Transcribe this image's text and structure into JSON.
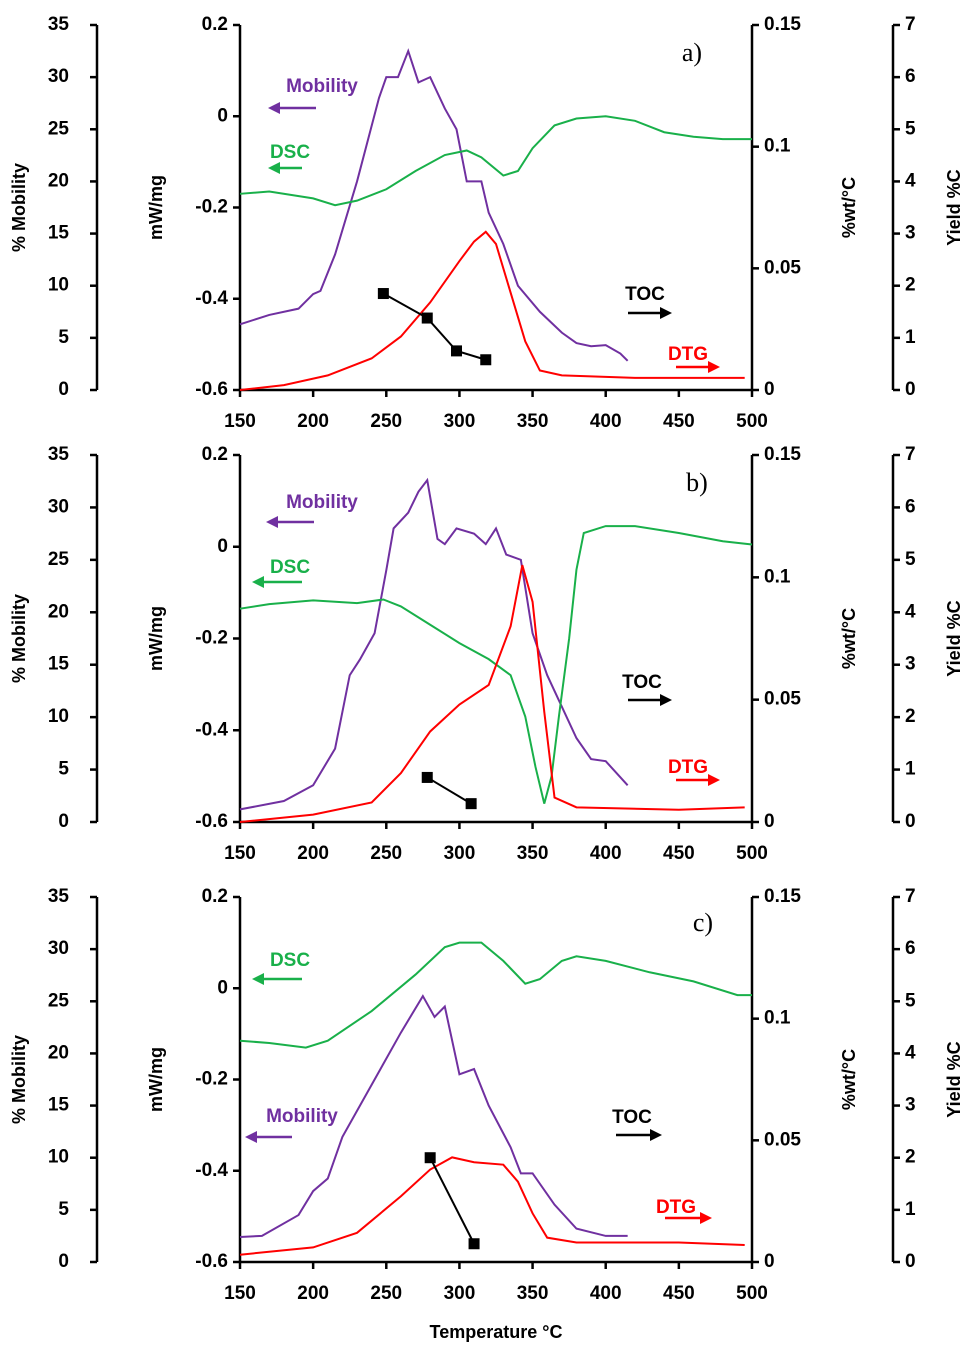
{
  "chart_data": [
    {
      "type": "line",
      "panel_label": "a)",
      "xlim": [
        150,
        500
      ],
      "xticks": [
        150,
        200,
        250,
        300,
        350,
        400,
        450,
        500
      ],
      "ylabel": "% Mobility",
      "ylim": [
        0,
        35
      ],
      "yticks": [
        0,
        5,
        10,
        15,
        20,
        25,
        30,
        35
      ],
      "y2label": "mW/mg",
      "y2lim": [
        -0.6,
        0.2
      ],
      "y2ticks": [
        -0.6,
        -0.4,
        -0.2,
        0,
        0.2
      ],
      "y3label": "%wt/°C",
      "y3lim": [
        0,
        0.15
      ],
      "y3ticks": [
        0,
        0.05,
        0.1,
        0.15
      ],
      "y4label": "Yield %C",
      "y4lim": [
        0,
        7
      ],
      "y4ticks": [
        0,
        1,
        2,
        3,
        4,
        5,
        6,
        7
      ],
      "series": [
        {
          "name": "Mobility",
          "color": "#7030a0",
          "axis": "y",
          "markers": false,
          "x": [
            150,
            170,
            190,
            200,
            205,
            215,
            230,
            245,
            250,
            258,
            265,
            272,
            280,
            290,
            298,
            305,
            315,
            320,
            330,
            340,
            355,
            370,
            380,
            390,
            400,
            410,
            415
          ],
          "values": [
            6.3,
            7.2,
            7.8,
            9.2,
            9.5,
            13,
            20,
            28,
            30,
            30,
            32.5,
            29.5,
            30,
            27,
            25,
            20,
            20,
            17,
            14,
            10,
            7.5,
            5.5,
            4.5,
            4.2,
            4.3,
            3.5,
            2.8
          ]
        },
        {
          "name": "DSC",
          "color": "#19b04a",
          "axis": "y2",
          "markers": false,
          "x": [
            150,
            170,
            200,
            215,
            230,
            250,
            270,
            290,
            305,
            315,
            330,
            340,
            350,
            365,
            380,
            400,
            420,
            440,
            460,
            480,
            500
          ],
          "values": [
            -0.17,
            -0.165,
            -0.18,
            -0.195,
            -0.185,
            -0.16,
            -0.12,
            -0.085,
            -0.075,
            -0.09,
            -0.13,
            -0.12,
            -0.07,
            -0.02,
            -0.005,
            0,
            -0.01,
            -0.035,
            -0.045,
            -0.05,
            -0.05
          ]
        },
        {
          "name": "DTG",
          "color": "#ff0000",
          "axis": "y3",
          "markers": false,
          "x": [
            150,
            180,
            210,
            240,
            260,
            280,
            300,
            310,
            318,
            325,
            335,
            345,
            355,
            370,
            420,
            495
          ],
          "values": [
            0,
            0.002,
            0.006,
            0.013,
            0.022,
            0.036,
            0.053,
            0.061,
            0.065,
            0.06,
            0.04,
            0.02,
            0.008,
            0.006,
            0.005,
            0.005
          ]
        },
        {
          "name": "TOC",
          "color": "#000000",
          "axis": "y4",
          "markers": true,
          "x": [
            248,
            278,
            298,
            318
          ],
          "values": [
            1.85,
            1.38,
            0.75,
            0.58
          ]
        }
      ]
    },
    {
      "type": "line",
      "panel_label": "b)",
      "xlim": [
        150,
        500
      ],
      "xticks": [
        150,
        200,
        250,
        300,
        350,
        400,
        450,
        500
      ],
      "ylabel": "% Mobility",
      "ylim": [
        0,
        35
      ],
      "yticks": [
        0,
        5,
        10,
        15,
        20,
        25,
        30,
        35
      ],
      "y2label": "mW/mg",
      "y2lim": [
        -0.6,
        0.2
      ],
      "y2ticks": [
        -0.6,
        -0.4,
        -0.2,
        0,
        0.2
      ],
      "y3label": "%wt/°C",
      "y3lim": [
        0,
        0.15
      ],
      "y3ticks": [
        0,
        0.05,
        0.1,
        0.15
      ],
      "y4label": "Yield %C",
      "y4lim": [
        0,
        7
      ],
      "y4ticks": [
        0,
        1,
        2,
        3,
        4,
        5,
        6,
        7
      ],
      "series": [
        {
          "name": "Mobility",
          "color": "#7030a0",
          "axis": "y",
          "markers": false,
          "x": [
            150,
            180,
            200,
            215,
            225,
            232,
            242,
            250,
            255,
            265,
            272,
            278,
            285,
            290,
            298,
            310,
            318,
            325,
            332,
            342,
            350,
            360,
            370,
            380,
            390,
            400,
            415
          ],
          "values": [
            1.2,
            2,
            3.5,
            7,
            14,
            15.5,
            18,
            24,
            28,
            29.5,
            31.5,
            32.6,
            27,
            26.5,
            28,
            27.5,
            26.5,
            28,
            25.5,
            25,
            18,
            14,
            11,
            8,
            6,
            5.8,
            3.5
          ]
        },
        {
          "name": "DSC",
          "color": "#19b04a",
          "axis": "y2",
          "markers": false,
          "x": [
            150,
            170,
            200,
            230,
            248,
            260,
            280,
            300,
            320,
            335,
            345,
            352,
            358,
            363,
            368,
            375,
            380,
            385,
            400,
            420,
            450,
            480,
            500
          ],
          "values": [
            -0.135,
            -0.125,
            -0.117,
            -0.123,
            -0.115,
            -0.13,
            -0.17,
            -0.21,
            -0.245,
            -0.28,
            -0.37,
            -0.48,
            -0.56,
            -0.5,
            -0.37,
            -0.2,
            -0.05,
            0.03,
            0.045,
            0.045,
            0.03,
            0.012,
            0.005
          ]
        },
        {
          "name": "DTG",
          "color": "#ff0000",
          "axis": "y3",
          "markers": false,
          "x": [
            150,
            200,
            240,
            260,
            280,
            300,
            320,
            335,
            343,
            350,
            358,
            365,
            380,
            450,
            495
          ],
          "values": [
            0,
            0.003,
            0.008,
            0.02,
            0.037,
            0.048,
            0.056,
            0.08,
            0.105,
            0.09,
            0.045,
            0.01,
            0.006,
            0.005,
            0.006
          ]
        },
        {
          "name": "TOC",
          "color": "#000000",
          "axis": "y4",
          "markers": true,
          "x": [
            278,
            308
          ],
          "values": [
            0.85,
            0.35
          ]
        }
      ]
    },
    {
      "type": "line",
      "panel_label": "c)",
      "xlabel": "Temperature °C",
      "xlim": [
        150,
        500
      ],
      "xticks": [
        150,
        200,
        250,
        300,
        350,
        400,
        450,
        500
      ],
      "ylabel": "% Mobility",
      "ylim": [
        0,
        35
      ],
      "yticks": [
        0,
        5,
        10,
        15,
        20,
        25,
        30,
        35
      ],
      "y2label": "mW/mg",
      "y2lim": [
        -0.6,
        0.2
      ],
      "y2ticks": [
        -0.6,
        -0.4,
        -0.2,
        0,
        0.2
      ],
      "y3label": "%wt/°C",
      "y3lim": [
        0,
        0.15
      ],
      "y3ticks": [
        0,
        0.05,
        0.1,
        0.15
      ],
      "y4label": "Yield %C",
      "y4lim": [
        0,
        7
      ],
      "y4ticks": [
        0,
        1,
        2,
        3,
        4,
        5,
        6,
        7
      ],
      "series": [
        {
          "name": "Mobility",
          "color": "#7030a0",
          "axis": "y",
          "markers": false,
          "x": [
            150,
            165,
            190,
            200,
            210,
            220,
            240,
            260,
            275,
            283,
            290,
            300,
            310,
            320,
            335,
            342,
            350,
            365,
            380,
            400,
            415
          ],
          "values": [
            2.4,
            2.5,
            4.5,
            6.8,
            8,
            12,
            17,
            22,
            25.5,
            23.5,
            24.5,
            18,
            18.5,
            15,
            11,
            8.5,
            8.5,
            5.5,
            3.2,
            2.5,
            2.5
          ]
        },
        {
          "name": "DSC",
          "color": "#19b04a",
          "axis": "y2",
          "markers": false,
          "x": [
            150,
            170,
            195,
            210,
            240,
            270,
            290,
            300,
            315,
            330,
            345,
            355,
            370,
            380,
            400,
            430,
            460,
            490,
            500
          ],
          "values": [
            -0.115,
            -0.12,
            -0.13,
            -0.115,
            -0.05,
            0.03,
            0.09,
            0.1,
            0.1,
            0.06,
            0.01,
            0.02,
            0.06,
            0.07,
            0.06,
            0.035,
            0.015,
            -0.015,
            -0.015
          ]
        },
        {
          "name": "DTG",
          "color": "#ff0000",
          "axis": "y3",
          "markers": false,
          "x": [
            150,
            200,
            230,
            260,
            280,
            295,
            310,
            330,
            340,
            350,
            360,
            380,
            450,
            495
          ],
          "values": [
            0.003,
            0.006,
            0.012,
            0.027,
            0.038,
            0.043,
            0.041,
            0.04,
            0.033,
            0.02,
            0.01,
            0.008,
            0.008,
            0.007
          ]
        },
        {
          "name": "TOC",
          "color": "#000000",
          "axis": "y4",
          "markers": true,
          "x": [
            280,
            310
          ],
          "values": [
            2.0,
            0.35
          ]
        }
      ]
    }
  ]
}
